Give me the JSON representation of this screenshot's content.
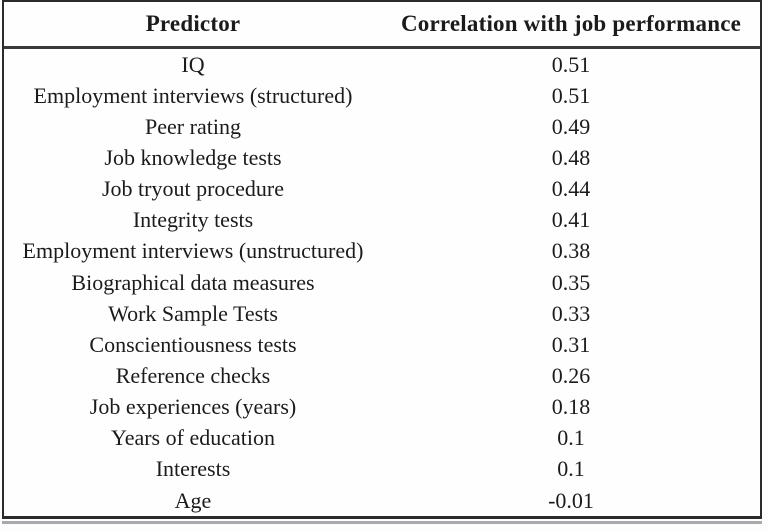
{
  "table": {
    "columns": [
      {
        "label": "Predictor"
      },
      {
        "label": "Correlation with job performance"
      }
    ],
    "rows": [
      {
        "predictor": "IQ",
        "correlation": "0.51"
      },
      {
        "predictor": "Employment interviews (structured)",
        "correlation": "0.51"
      },
      {
        "predictor": "Peer rating",
        "correlation": "0.49"
      },
      {
        "predictor": "Job knowledge tests",
        "correlation": "0.48"
      },
      {
        "predictor": "Job tryout procedure",
        "correlation": "0.44"
      },
      {
        "predictor": "Integrity tests",
        "correlation": "0.41"
      },
      {
        "predictor": "Employment interviews (unstructured)",
        "correlation": "0.38"
      },
      {
        "predictor": "Biographical data measures",
        "correlation": "0.35"
      },
      {
        "predictor": "Work Sample Tests",
        "correlation": "0.33"
      },
      {
        "predictor": "Conscientiousness tests",
        "correlation": "0.31"
      },
      {
        "predictor": "Reference checks",
        "correlation": "0.26"
      },
      {
        "predictor": "Job experiences (years)",
        "correlation": "0.18"
      },
      {
        "predictor": "Years of education",
        "correlation": "0.1"
      },
      {
        "predictor": "Interests",
        "correlation": "0.1"
      },
      {
        "predictor": "Age",
        "correlation": "-0.01"
      }
    ]
  },
  "chart_data": {
    "type": "table",
    "title": "",
    "columns": [
      "Predictor",
      "Correlation with job performance"
    ],
    "categories": [
      "IQ",
      "Employment interviews (structured)",
      "Peer rating",
      "Job knowledge tests",
      "Job tryout procedure",
      "Integrity tests",
      "Employment interviews (unstructured)",
      "Biographical data measures",
      "Work Sample Tests",
      "Conscientiousness tests",
      "Reference checks",
      "Job experiences (years)",
      "Years of education",
      "Interests",
      "Age"
    ],
    "values": [
      0.51,
      0.51,
      0.49,
      0.48,
      0.44,
      0.41,
      0.38,
      0.35,
      0.33,
      0.31,
      0.26,
      0.18,
      0.1,
      0.1,
      -0.01
    ]
  },
  "colors": {
    "border": "#2b2b2b",
    "header_rule": "#3a3a3a",
    "bottom_secondary_rule": "#a9a9ad",
    "text": "#1b1b1b",
    "background": "#fdfdfd"
  }
}
